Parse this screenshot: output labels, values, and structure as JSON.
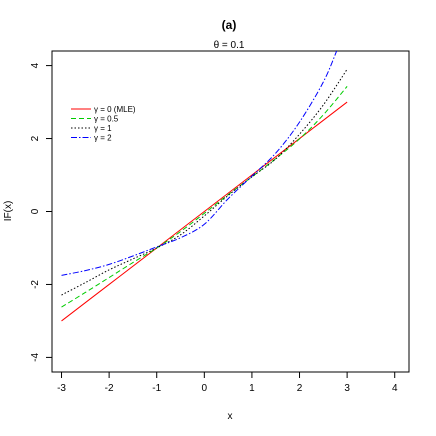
{
  "chart_data": {
    "type": "line",
    "title": "(a)",
    "subtitle": "θ = 0.1",
    "xlabel": "x",
    "ylabel": "IF(x)",
    "xlim": [
      -3.2,
      4.3
    ],
    "ylim": [
      -4.4,
      4.4
    ],
    "xticks": [
      "-3",
      "-2",
      "-1",
      "0",
      "1",
      "2",
      "3",
      "4"
    ],
    "yticks": [
      "-4",
      "-2",
      "0",
      "2",
      "4"
    ],
    "grid": false,
    "legend_position": "top-left",
    "series": [
      {
        "name": "γ = 0 (MLE)",
        "color": "#ff0000",
        "dash": "solid",
        "x": [
          -3,
          -2,
          -1,
          0,
          1,
          2,
          3
        ],
        "y": [
          -3.0,
          -2.0,
          -1.0,
          0.0,
          1.0,
          2.0,
          3.0
        ]
      },
      {
        "name": "γ = 0.5",
        "color": "#00cc00",
        "dash": "dashed",
        "x": [
          -3,
          -2.5,
          -2,
          -1.5,
          -1,
          -0.5,
          0,
          0.5,
          1,
          1.5,
          2,
          2.5,
          3
        ],
        "y": [
          -2.62,
          -2.22,
          -1.81,
          -1.4,
          -1.0,
          -0.55,
          -0.05,
          0.46,
          0.95,
          1.45,
          1.99,
          2.65,
          3.43
        ]
      },
      {
        "name": "γ = 1",
        "color": "#000000",
        "dash": "dotted",
        "x": [
          -3,
          -2.5,
          -2,
          -1.5,
          -1,
          -0.5,
          0,
          0.5,
          1,
          1.5,
          2,
          2.5,
          3
        ],
        "y": [
          -2.29,
          -1.95,
          -1.6,
          -1.3,
          -1.0,
          -0.64,
          -0.12,
          0.44,
          0.95,
          1.44,
          2.12,
          2.92,
          3.9
        ]
      },
      {
        "name": "γ = 2",
        "color": "#0000ff",
        "dash": "dashdot",
        "x": [
          -3,
          -2.5,
          -2,
          -1.5,
          -1,
          -0.5,
          0,
          0.5,
          1,
          1.5,
          2,
          2.5,
          2.78
        ],
        "y": [
          -1.75,
          -1.62,
          -1.45,
          -1.22,
          -0.97,
          -0.72,
          -0.35,
          0.35,
          0.97,
          1.6,
          2.45,
          3.55,
          4.4
        ]
      }
    ]
  }
}
